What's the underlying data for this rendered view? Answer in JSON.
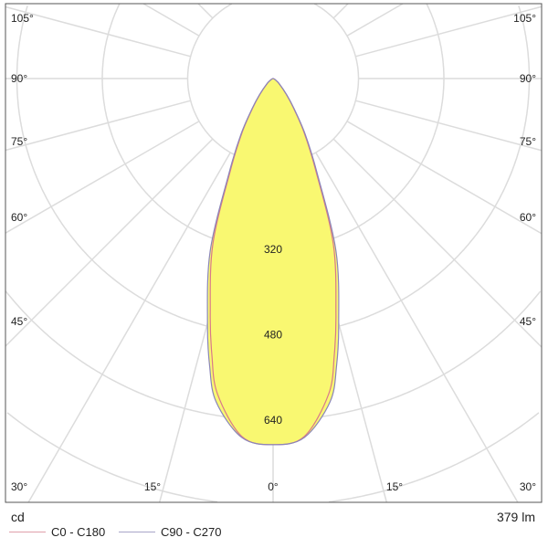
{
  "chart_data": {
    "type": "polar",
    "unit": "cd",
    "flux": "379 lm",
    "radial_max": 640,
    "radial_ticks": [
      160,
      320,
      480,
      640
    ],
    "radial_tick_labels": [
      "320",
      "480",
      "640"
    ],
    "angle_labels_left": [
      "105°",
      "90°",
      "75°",
      "60°",
      "45°",
      "30°"
    ],
    "angle_labels_right": [
      "105°",
      "90°",
      "75°",
      "60°",
      "45°",
      "30°"
    ],
    "angle_labels_bottom": [
      "30°",
      "15°",
      "0°",
      "15°",
      "30°"
    ],
    "fill_color": "#f9f871",
    "series": [
      {
        "name": "C0 - C180",
        "color": "#d9798a",
        "angles": [
          0,
          5,
          10,
          12.5,
          15,
          20,
          25,
          30,
          35,
          40,
          50,
          60,
          70,
          90
        ],
        "values": [
          686,
          673,
          600,
          530,
          455,
          330,
          188,
          115,
          65,
          38,
          14,
          5,
          2,
          0
        ]
      },
      {
        "name": "C90 - C270",
        "color": "#8a86b8",
        "angles": [
          0,
          5,
          10,
          12.5,
          15,
          20,
          25,
          30,
          35,
          40,
          50,
          60,
          70,
          90
        ],
        "values": [
          686,
          675,
          615,
          550,
          475,
          345,
          195,
          120,
          68,
          40,
          15,
          5,
          2,
          0
        ]
      }
    ]
  }
}
